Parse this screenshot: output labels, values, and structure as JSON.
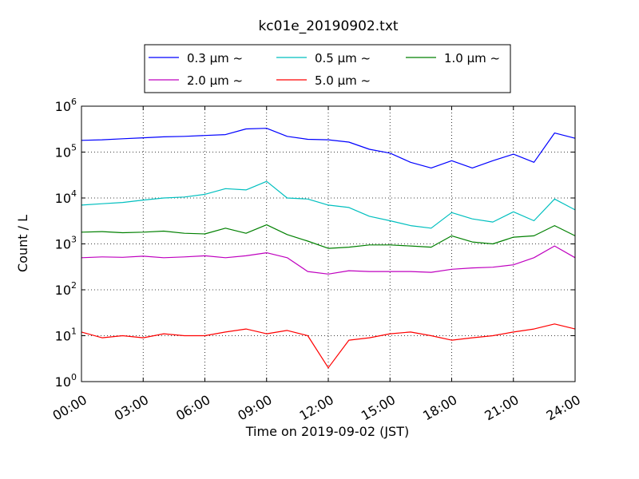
{
  "chart_data": {
    "type": "line",
    "title": "kc01e_20190902.txt",
    "xlabel": "Time on 2019-09-02 (JST)",
    "ylabel": "Count / L",
    "y_scale": "log",
    "ylim": [
      1,
      1000000
    ],
    "xlim": [
      "00:00",
      "24:00"
    ],
    "grid": true,
    "legend_position": "top-center",
    "x_ticks": [
      "00:00",
      "03:00",
      "06:00",
      "09:00",
      "12:00",
      "15:00",
      "18:00",
      "21:00",
      "24:00"
    ],
    "y_ticks": [
      {
        "value": 1,
        "base": "10",
        "exp": "0"
      },
      {
        "value": 10,
        "base": "10",
        "exp": "1"
      },
      {
        "value": 100,
        "base": "10",
        "exp": "2"
      },
      {
        "value": 1000,
        "base": "10",
        "exp": "3"
      },
      {
        "value": 10000,
        "base": "10",
        "exp": "4"
      },
      {
        "value": 100000,
        "base": "10",
        "exp": "5"
      },
      {
        "value": 1000000,
        "base": "10",
        "exp": "6"
      }
    ],
    "x": [
      "00:00",
      "01:00",
      "02:00",
      "03:00",
      "04:00",
      "05:00",
      "06:00",
      "07:00",
      "08:00",
      "09:00",
      "10:00",
      "11:00",
      "12:00",
      "13:00",
      "14:00",
      "15:00",
      "16:00",
      "17:00",
      "18:00",
      "19:00",
      "20:00",
      "21:00",
      "22:00",
      "23:00",
      "24:00"
    ],
    "series": [
      {
        "name": "0.3 μm ~",
        "color": "#0000ff",
        "values": [
          180000,
          185000,
          195000,
          205000,
          215000,
          220000,
          230000,
          240000,
          320000,
          330000,
          220000,
          190000,
          185000,
          165000,
          115000,
          95000,
          60000,
          45000,
          65000,
          45000,
          65000,
          90000,
          60000,
          260000,
          200000
        ]
      },
      {
        "name": "0.5 μm ~",
        "color": "#00bfbf",
        "values": [
          7000,
          7500,
          8000,
          9000,
          10000,
          10500,
          12000,
          16000,
          15000,
          23000,
          10000,
          9500,
          7000,
          6200,
          4000,
          3200,
          2500,
          2200,
          4800,
          3500,
          3000,
          5000,
          3200,
          9500,
          5500
        ]
      },
      {
        "name": "1.0 μm ~",
        "color": "#008000",
        "values": [
          1800,
          1850,
          1750,
          1800,
          1900,
          1700,
          1650,
          2200,
          1700,
          2600,
          1600,
          1150,
          800,
          850,
          950,
          950,
          900,
          850,
          1500,
          1100,
          1000,
          1400,
          1500,
          2500,
          1500
        ]
      },
      {
        "name": "2.0 μm ~",
        "color": "#bf00bf",
        "values": [
          500,
          520,
          510,
          540,
          500,
          520,
          550,
          500,
          550,
          640,
          500,
          250,
          220,
          260,
          250,
          250,
          250,
          240,
          280,
          300,
          310,
          350,
          500,
          900,
          500
        ]
      },
      {
        "name": "5.0 μm ~",
        "color": "#ff0000",
        "values": [
          12,
          9,
          10,
          9,
          11,
          10,
          10,
          12,
          14,
          11,
          13,
          10,
          2,
          8,
          9,
          11,
          12,
          10,
          8,
          9,
          10,
          12,
          14,
          18,
          14
        ]
      }
    ]
  }
}
